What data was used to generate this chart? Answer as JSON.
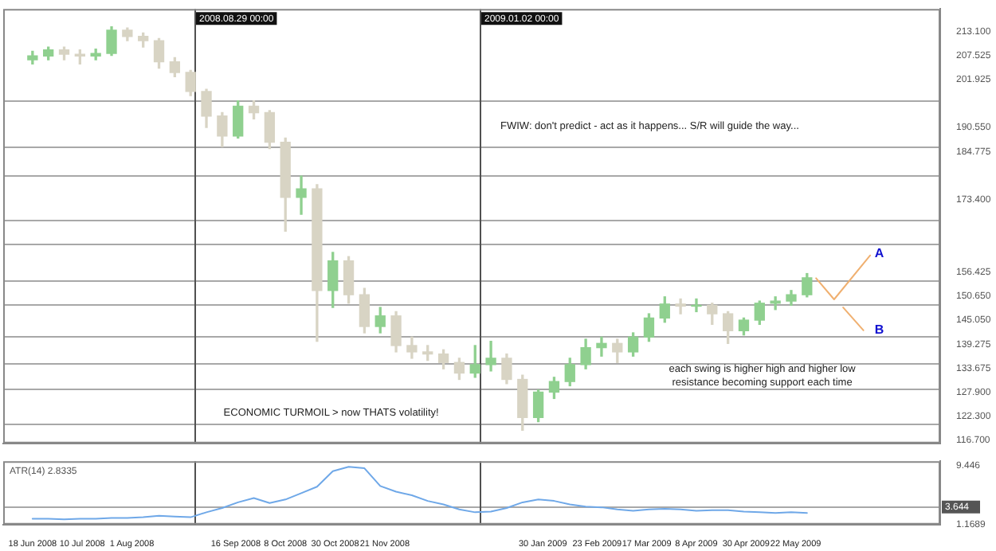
{
  "chart_data": [
    {
      "type": "candlestick",
      "tick_labels": "y",
      "x": [
        "2008-06-18",
        "2008-06-25",
        "2008-07-02",
        "2008-07-09",
        "2008-07-16",
        "2008-07-23",
        "2008-07-30",
        "2008-08-06",
        "2008-08-13",
        "2008-08-20",
        "2008-08-27",
        "2008-09-03",
        "2008-09-10",
        "2008-09-17",
        "2008-09-24",
        "2008-10-01",
        "2008-10-08",
        "2008-10-15",
        "2008-10-22",
        "2008-10-29",
        "2008-11-05",
        "2008-11-12",
        "2008-11-19",
        "2008-11-26",
        "2008-12-03",
        "2008-12-10",
        "2008-12-17",
        "2008-12-24",
        "2008-12-31",
        "2009-01-07",
        "2009-01-14",
        "2009-01-21",
        "2009-01-28",
        "2009-02-04",
        "2009-02-11",
        "2009-02-18",
        "2009-02-25",
        "2009-03-04",
        "2009-03-11",
        "2009-03-18",
        "2009-03-25",
        "2009-04-01",
        "2009-04-08",
        "2009-04-15",
        "2009-04-22",
        "2009-04-29",
        "2009-05-06",
        "2009-05-13",
        "2009-05-20",
        "2009-05-27"
      ],
      "ohlc": [
        [
          206.5,
          208.5,
          205.5,
          207.4
        ],
        [
          207.4,
          209.5,
          206.5,
          208.8
        ],
        [
          208.8,
          209.5,
          206.5,
          207.8
        ],
        [
          207.8,
          208.8,
          205.5,
          207.4
        ],
        [
          207.4,
          209,
          206.5,
          208
        ],
        [
          208,
          214.3,
          207.5,
          213.5
        ],
        [
          213.5,
          214,
          211,
          212
        ],
        [
          212,
          212.8,
          209.5,
          211
        ],
        [
          211,
          211.5,
          204.5,
          206
        ],
        [
          206,
          207,
          202.5,
          203.5
        ],
        [
          203.5,
          204,
          198,
          199
        ],
        [
          199,
          199.5,
          190.5,
          193.2
        ],
        [
          193.2,
          194,
          186,
          188.5
        ],
        [
          188.5,
          196.8,
          188,
          195.5
        ],
        [
          195.5,
          196.8,
          192.5,
          194
        ],
        [
          194,
          194.5,
          185.5,
          187
        ],
        [
          187,
          188,
          166,
          174
        ],
        [
          174,
          179,
          170,
          176
        ],
        [
          176,
          177,
          140,
          152
        ],
        [
          152,
          161,
          148,
          159
        ],
        [
          159,
          160,
          149,
          151
        ],
        [
          151,
          152.5,
          142,
          143.5
        ],
        [
          143.5,
          148,
          142,
          146
        ],
        [
          146,
          147,
          137.5,
          139
        ],
        [
          139,
          141,
          136,
          137.5
        ],
        [
          137.5,
          139,
          135.5,
          137
        ],
        [
          137,
          138,
          133.5,
          135
        ],
        [
          135,
          136,
          131,
          132.5
        ],
        [
          132.5,
          139,
          131.5,
          134.5
        ],
        [
          134.5,
          140,
          133,
          136
        ],
        [
          136,
          137,
          130,
          131
        ],
        [
          131,
          132,
          119,
          122
        ],
        [
          122,
          128.5,
          121,
          128
        ],
        [
          128,
          131.5,
          126.5,
          130.5
        ],
        [
          130.5,
          136,
          129.5,
          134.5
        ],
        [
          134.5,
          140.5,
          133.5,
          138.5
        ],
        [
          138.5,
          141,
          136.5,
          139.5
        ],
        [
          139.5,
          140.5,
          135,
          137.5
        ],
        [
          137.5,
          142,
          136.5,
          141
        ],
        [
          141,
          146.5,
          140,
          145.5
        ],
        [
          145.5,
          150.5,
          144.5,
          148.8
        ],
        [
          148.8,
          150,
          146.5,
          148.3
        ],
        [
          148.3,
          150,
          147,
          148.5
        ],
        [
          148.5,
          149,
          144,
          146.5
        ],
        [
          146.5,
          147,
          139.5,
          142.5
        ],
        [
          142.5,
          145.5,
          141.5,
          145
        ],
        [
          145,
          149.5,
          144,
          149
        ],
        [
          149,
          150.5,
          147.5,
          149.5
        ],
        [
          149.5,
          152,
          148.5,
          151
        ],
        [
          151,
          156,
          150.5,
          155
        ]
      ],
      "colors": [
        "#8fd08f",
        "#8fd08f",
        "#d8d4c4",
        "#d8d4c4",
        "#8fd08f",
        "#8fd08f",
        "#d8d4c4",
        "#d8d4c4",
        "#d8d4c4",
        "#d8d4c4",
        "#d8d4c4",
        "#d8d4c4",
        "#d8d4c4",
        "#8fd08f",
        "#d8d4c4",
        "#d8d4c4",
        "#d8d4c4",
        "#8fd08f",
        "#d8d4c4",
        "#8fd08f",
        "#d8d4c4",
        "#d8d4c4",
        "#8fd08f",
        "#d8d4c4",
        "#d8d4c4",
        "#d8d4c4",
        "#d8d4c4",
        "#d8d4c4",
        "#8fd08f",
        "#8fd08f",
        "#d8d4c4",
        "#d8d4c4",
        "#8fd08f",
        "#8fd08f",
        "#8fd08f",
        "#8fd08f",
        "#8fd08f",
        "#d8d4c4",
        "#8fd08f",
        "#8fd08f",
        "#8fd08f",
        "#d8d4c4",
        "#8fd08f",
        "#d8d4c4",
        "#d8d4c4",
        "#8fd08f",
        "#8fd08f",
        "#8fd08f",
        "#8fd08f",
        "#8fd08f"
      ],
      "series": [
        {
          "type": "line",
          "color": "#f0b070",
          "x": [
            "2009-05-31",
            "2009-06-08",
            "2009-06-24"
          ],
          "values": [
            154.9,
            149.9,
            160.3
          ]
        },
        {
          "type": "line",
          "color": "#f0b070",
          "x": [
            "2009-06-12",
            "2009-06-21"
          ],
          "values": [
            148.0,
            142.6
          ]
        }
      ],
      "xlim": [
        "2008-06-05",
        "2009-07-25"
      ],
      "ylim": [
        115.9,
        218.5
      ],
      "yticks": [
        {
          "value": 213.1,
          "label": "213.100"
        },
        {
          "value": 207.525,
          "label": "207.525"
        },
        {
          "value": 201.925,
          "label": "201.925"
        },
        {
          "value": 190.55,
          "label": "190.550"
        },
        {
          "value": 184.775,
          "label": "184.775"
        },
        {
          "value": 173.4,
          "label": "173.400"
        },
        {
          "value": 156.425,
          "label": "156.425"
        },
        {
          "value": 150.65,
          "label": "150.650"
        },
        {
          "value": 145.05,
          "label": "145.050"
        },
        {
          "value": 139.275,
          "label": "139.275"
        },
        {
          "value": 133.675,
          "label": "133.675"
        },
        {
          "value": 127.9,
          "label": "127.900"
        },
        {
          "value": 122.3,
          "label": "122.300"
        },
        {
          "value": 116.7,
          "label": "116.700"
        }
      ],
      "ref_lines": [
        {
          "axis": "y",
          "value": 196.8,
          "color": "#a8a8a8"
        },
        {
          "axis": "y",
          "value": 186.0,
          "color": "#a8a8a8"
        },
        {
          "axis": "y",
          "value": 179.1,
          "color": "#a8a8a8"
        },
        {
          "axis": "y",
          "value": 168.7,
          "color": "#a8a8a8"
        },
        {
          "axis": "y",
          "value": 162.9,
          "color": "#a8a8a8"
        },
        {
          "axis": "y",
          "value": 154.6,
          "color": "#a8a8a8"
        },
        {
          "axis": "y",
          "value": 148.8,
          "color": "#a8a8a8"
        },
        {
          "axis": "y",
          "value": 141.2,
          "color": "#a8a8a8"
        },
        {
          "axis": "y",
          "value": 135.0,
          "color": "#a8a8a8"
        },
        {
          "axis": "y",
          "value": 128.9,
          "color": "#a8a8a8"
        },
        {
          "axis": "y",
          "value": 120.6,
          "color": "#a8a8a8"
        },
        {
          "axis": "x",
          "value": "2008-08-29",
          "label": "2008.08.29 00:00",
          "color": "#505050"
        },
        {
          "axis": "x",
          "value": "2009-01-02",
          "label": "2009.01.02 00:00",
          "color": "#505050"
        }
      ],
      "annotations": [
        "FWIW: don't predict - act as it happens... S/R will guide the way...",
        "each swing is higher high and higher low\nresistance becoming support each time",
        "ECONOMIC TURMOIL > now THATS volatility!",
        "A",
        "B"
      ]
    },
    {
      "type": "line",
      "title": "ATR(14) 2.8335",
      "color": "#6fa8e8",
      "x": [
        "2008-06-18",
        "2008-06-25",
        "2008-07-02",
        "2008-07-09",
        "2008-07-16",
        "2008-07-23",
        "2008-07-30",
        "2008-08-06",
        "2008-08-13",
        "2008-08-20",
        "2008-08-27",
        "2008-09-03",
        "2008-09-10",
        "2008-09-17",
        "2008-09-24",
        "2008-10-01",
        "2008-10-08",
        "2008-10-15",
        "2008-10-22",
        "2008-10-29",
        "2008-11-05",
        "2008-11-12",
        "2008-11-19",
        "2008-11-26",
        "2008-12-03",
        "2008-12-10",
        "2008-12-17",
        "2008-12-24",
        "2008-12-31",
        "2009-01-07",
        "2009-01-14",
        "2009-01-21",
        "2009-01-28",
        "2009-02-04",
        "2009-02-11",
        "2009-02-18",
        "2009-02-25",
        "2009-03-04",
        "2009-03-11",
        "2009-03-18",
        "2009-03-25",
        "2009-04-01",
        "2009-04-08",
        "2009-04-15",
        "2009-04-22",
        "2009-04-29",
        "2009-05-06",
        "2009-05-13",
        "2009-05-20",
        "2009-05-27"
      ],
      "values": [
        2.0,
        2.0,
        1.9,
        2.0,
        2.0,
        2.1,
        2.1,
        2.2,
        2.4,
        2.3,
        2.2,
        2.9,
        3.5,
        4.3,
        4.9,
        4.2,
        4.7,
        5.6,
        6.5,
        8.7,
        9.3,
        9.1,
        6.6,
        5.8,
        5.3,
        4.5,
        4.0,
        3.3,
        2.9,
        3.0,
        3.5,
        4.3,
        4.7,
        4.5,
        4.0,
        3.7,
        3.6,
        3.3,
        3.1,
        3.3,
        3.4,
        3.3,
        3.1,
        3.2,
        3.2,
        3.0,
        2.9,
        2.8,
        2.9,
        2.8
      ],
      "xlim": [
        "2008-06-05",
        "2009-07-25"
      ],
      "ylim": [
        1.1689,
        10.1
      ],
      "yticks": [
        {
          "value": 9.446,
          "label": "9.446"
        },
        {
          "value": 1.1689,
          "label": "1.1689"
        }
      ],
      "xticks": [
        {
          "value": "2008-06-18",
          "label": "18 Jun 2008"
        },
        {
          "value": "2008-07-10",
          "label": "10 Jul 2008"
        },
        {
          "value": "2008-08-01",
          "label": "1 Aug 2008"
        },
        {
          "value": "2008-09-16",
          "label": "16 Sep 2008"
        },
        {
          "value": "2008-10-08",
          "label": "8 Oct 2008"
        },
        {
          "value": "2008-10-30",
          "label": "30 Oct 2008"
        },
        {
          "value": "2008-11-21",
          "label": "21 Nov 2008"
        },
        {
          "value": "2009-01-30",
          "label": "30 Jan 2009"
        },
        {
          "value": "2009-02-23",
          "label": "23 Feb 2009"
        },
        {
          "value": "2009-03-17",
          "label": "17 Mar 2009"
        },
        {
          "value": "2009-04-08",
          "label": "8 Apr 2009"
        },
        {
          "value": "2009-04-30",
          "label": "30 Apr 2009"
        },
        {
          "value": "2009-05-22",
          "label": "22 May 2009"
        }
      ],
      "ref_lines": [
        {
          "axis": "y",
          "value": 3.644,
          "label": "3.644",
          "color": "#a8a8a8"
        },
        {
          "axis": "x",
          "value": "2008-08-29",
          "color": "#505050"
        },
        {
          "axis": "x",
          "value": "2009-01-02",
          "color": "#505050"
        }
      ]
    }
  ]
}
